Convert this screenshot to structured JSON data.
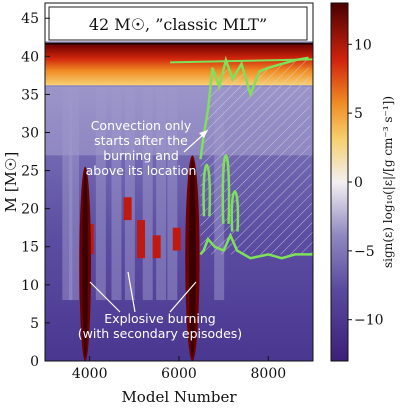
{
  "chart_data": {
    "type": "heatmap",
    "title": "42 M☉, ”classic MLT”",
    "xlabel": "Model Number",
    "ylabel": "M [M☉]",
    "colorbar_label": "sign(ε) log₁₀(|ε|/[g cm⁻³ s⁻¹])",
    "xlim": [
      3000,
      9000
    ],
    "ylim": [
      0,
      47
    ],
    "clim": [
      -13,
      13
    ],
    "x_ticks": [
      4000,
      6000,
      8000
    ],
    "y_ticks": [
      0,
      5,
      10,
      15,
      20,
      25,
      30,
      35,
      40,
      45
    ],
    "colorbar_ticks": [
      10,
      5,
      0,
      -5,
      -10
    ],
    "colormap": [
      "#3b1f78",
      "#6a5aa6",
      "#b3aed3",
      "#f4f0f2",
      "#f5c25a",
      "#ee7a1c",
      "#c9170c",
      "#5c0000"
    ],
    "surface_mass": 42,
    "burning_events": [
      {
        "x": 3900,
        "y_top": 25.5,
        "y_bottom": 0,
        "width": 260
      },
      {
        "x": 6300,
        "y_top": 27.0,
        "y_bottom": 0,
        "width": 320
      }
    ],
    "convective_boundary_x": [
      6480,
      6550,
      6650,
      6750,
      6900,
      7050,
      7200,
      7400,
      7600,
      7800,
      8000,
      8300,
      8600,
      8900
    ],
    "convective_boundary_y": [
      26.5,
      29.5,
      33.0,
      38.5,
      36.0,
      39.5,
      37.0,
      39.0,
      35.0,
      38.0,
      38.5,
      39.0,
      39.5,
      39.8
    ],
    "annotations": [
      {
        "lines": [
          "Convection only",
          "starts after the",
          "burning and",
          "above its location"
        ]
      },
      {
        "lines": [
          "Explosive burning",
          "(with secondary episodes)"
        ]
      }
    ]
  }
}
